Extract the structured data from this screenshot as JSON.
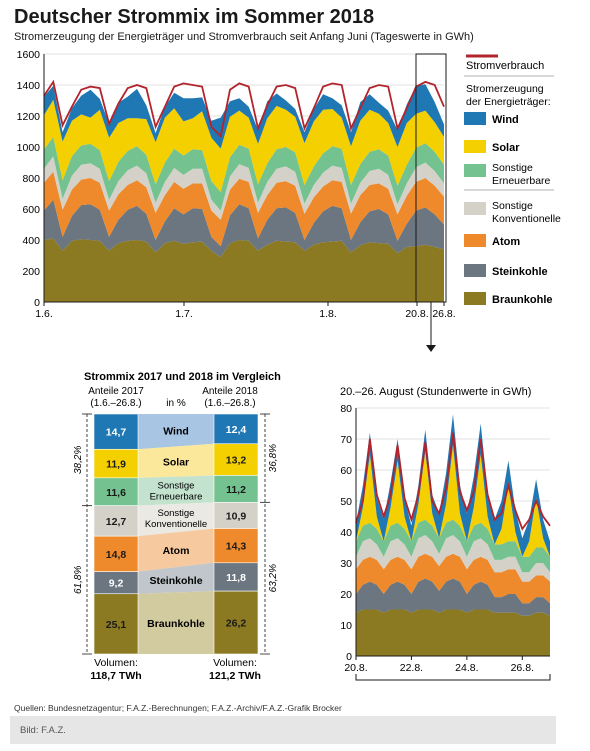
{
  "header": {
    "title": "Deutscher Strommix im Sommer 2018",
    "subtitle": "Stromerzeugung der Energieträger und Stromverbrauch seit Anfang Juni (Tageswerte in GWh)"
  },
  "legend": {
    "consumption": "Stromverbrauch",
    "heading": "Stromerzeugung der Energieträger:",
    "items": [
      {
        "label": "Wind",
        "color": "#1f78b4"
      },
      {
        "label": "Solar",
        "color": "#f5d000"
      },
      {
        "label": "Sonstige Erneuerbare",
        "color": "#73c28f"
      },
      {
        "label": "Sonstige Konventionelle",
        "color": "#d4d1c9"
      },
      {
        "label": "Atom",
        "color": "#ee8a2b"
      },
      {
        "label": "Steinkohle",
        "color": "#6b7680"
      },
      {
        "label": "Braunkohle",
        "color": "#8c7a22"
      }
    ],
    "consumption_color": "#b2242c"
  },
  "chart_data": [
    {
      "type": "area",
      "subtitle": "Stromerzeugung der Energieträger und Stromverbrauch seit Anfang Juni (Tageswerte in GWh)",
      "x_ticks": [
        "1.6.",
        "1.7.",
        "1.8.",
        "20.8.",
        "26.8."
      ],
      "ylim": [
        0,
        1600
      ],
      "y_ticks": [
        0,
        200,
        400,
        600,
        800,
        1000,
        1200,
        1400,
        1600
      ],
      "grid": true,
      "x": [
        "1.6.",
        "3.6.",
        "5.6.",
        "7.6.",
        "9.6.",
        "11.6.",
        "13.6.",
        "15.6.",
        "17.6.",
        "19.6.",
        "21.6.",
        "23.6.",
        "25.6.",
        "27.6.",
        "29.6.",
        "1.7.",
        "3.7.",
        "5.7.",
        "7.7.",
        "9.7.",
        "11.7.",
        "13.7.",
        "15.7.",
        "17.7.",
        "19.7.",
        "21.7.",
        "23.7.",
        "25.7.",
        "27.7.",
        "29.7.",
        "31.7.",
        "2.8.",
        "4.8.",
        "6.8.",
        "8.8.",
        "10.8.",
        "12.8.",
        "14.8.",
        "16.8.",
        "18.8.",
        "20.8.",
        "22.8.",
        "24.8.",
        "26.8."
      ],
      "series": [
        {
          "name": "Braunkohle",
          "values": [
            400,
            410,
            330,
            395,
            405,
            400,
            395,
            330,
            380,
            395,
            400,
            390,
            320,
            380,
            395,
            375,
            385,
            390,
            330,
            290,
            380,
            400,
            395,
            330,
            370,
            395,
            390,
            385,
            330,
            370,
            385,
            390,
            395,
            320,
            365,
            385,
            380,
            375,
            315,
            355,
            360,
            370,
            355,
            340
          ]
        },
        {
          "name": "Steinkohle",
          "values": [
            190,
            250,
            90,
            160,
            220,
            230,
            200,
            90,
            150,
            200,
            220,
            180,
            80,
            140,
            210,
            190,
            220,
            210,
            90,
            70,
            180,
            230,
            210,
            80,
            160,
            210,
            220,
            190,
            70,
            140,
            200,
            230,
            210,
            80,
            150,
            200,
            220,
            190,
            80,
            150,
            230,
            240,
            210,
            160
          ]
        },
        {
          "name": "Atom",
          "values": [
            180,
            180,
            175,
            170,
            165,
            170,
            175,
            170,
            165,
            160,
            165,
            170,
            175,
            170,
            170,
            165,
            160,
            165,
            170,
            170,
            165,
            165,
            170,
            165,
            160,
            165,
            170,
            175,
            170,
            165,
            160,
            165,
            170,
            170,
            175,
            170,
            165,
            165,
            170,
            180,
            185,
            190,
            185,
            180
          ]
        },
        {
          "name": "Sonstige Konventionelle",
          "values": [
            90,
            100,
            70,
            90,
            95,
            95,
            90,
            70,
            85,
            95,
            95,
            90,
            65,
            85,
            90,
            90,
            95,
            95,
            70,
            60,
            85,
            95,
            90,
            65,
            85,
            90,
            95,
            90,
            65,
            80,
            90,
            95,
            90,
            65,
            80,
            90,
            95,
            90,
            65,
            80,
            95,
            100,
            95,
            85
          ]
        },
        {
          "name": "Sonstige Erneuerbare",
          "values": [
            125,
            125,
            120,
            125,
            125,
            125,
            120,
            120,
            125,
            125,
            125,
            120,
            120,
            125,
            125,
            125,
            125,
            120,
            120,
            120,
            125,
            125,
            125,
            120,
            120,
            125,
            125,
            125,
            120,
            120,
            125,
            125,
            125,
            120,
            120,
            125,
            125,
            125,
            120,
            120,
            125,
            125,
            125,
            120
          ]
        },
        {
          "name": "Solar",
          "values": [
            220,
            240,
            250,
            230,
            200,
            170,
            260,
            280,
            250,
            210,
            180,
            230,
            270,
            290,
            260,
            220,
            200,
            250,
            280,
            280,
            260,
            220,
            200,
            260,
            290,
            280,
            240,
            230,
            270,
            290,
            280,
            240,
            200,
            250,
            280,
            270,
            230,
            210,
            250,
            270,
            220,
            210,
            190,
            180
          ]
        },
        {
          "name": "Wind",
          "values": [
            120,
            90,
            60,
            80,
            120,
            180,
            70,
            90,
            130,
            140,
            190,
            90,
            60,
            70,
            100,
            150,
            130,
            90,
            110,
            200,
            100,
            80,
            70,
            90,
            110,
            80,
            60,
            50,
            70,
            80,
            100,
            70,
            80,
            90,
            120,
            100,
            70,
            80,
            110,
            120,
            180,
            170,
            130,
            80
          ]
        }
      ],
      "consumption": [
        1330,
        1420,
        1140,
        1260,
        1370,
        1390,
        1380,
        1150,
        1280,
        1380,
        1400,
        1380,
        1130,
        1260,
        1390,
        1410,
        1400,
        1390,
        1130,
        1070,
        1370,
        1410,
        1390,
        1120,
        1270,
        1390,
        1400,
        1380,
        1120,
        1250,
        1390,
        1410,
        1400,
        1120,
        1250,
        1380,
        1400,
        1390,
        1120,
        1250,
        1390,
        1420,
        1400,
        1260
      ]
    },
    {
      "type": "table",
      "title": "Strommix 2017 und 2018 im Vergleich",
      "col_left": "Anteile 2017",
      "col_left_range": "(1.6.–26.8.)",
      "col_mid": "in %",
      "col_right": "Anteile 2018",
      "col_right_range": "(1.6.–26.8.)",
      "rows": [
        {
          "label": "Wind",
          "v2017": "14,7",
          "v2018": "12,4"
        },
        {
          "label": "Solar",
          "v2017": "11,9",
          "v2018": "13,2"
        },
        {
          "label": "Sonstige Erneuerbare",
          "v2017": "11,6",
          "v2018": "11,2"
        },
        {
          "label": "Sonstige Konventionelle",
          "v2017": "12,7",
          "v2018": "10,9"
        },
        {
          "label": "Atom",
          "v2017": "14,8",
          "v2018": "14,3"
        },
        {
          "label": "Steinkohle",
          "v2017": "9,2",
          "v2018": "11,8"
        },
        {
          "label": "Braunkohle",
          "v2017": "25,1",
          "v2018": "26,2"
        }
      ],
      "group_left": [
        "38,2%",
        "61,8%"
      ],
      "group_right": [
        "36,8%",
        "63,2%"
      ],
      "volume_label": "Volumen:",
      "volume_2017": "118,7 TWh",
      "volume_2018": "121,2 TWh"
    },
    {
      "type": "area",
      "title": "20.–26. August (Stundenwerte in GWh)",
      "x_ticks": [
        "20.8.",
        "22.8.",
        "24.8.",
        "26.8."
      ],
      "ylim": [
        0,
        80
      ],
      "y_ticks": [
        0,
        10,
        20,
        30,
        40,
        50,
        60,
        70,
        80
      ],
      "grid": true,
      "x": [
        "20.8. 0h",
        "20.8. 6h",
        "20.8. 12h",
        "20.8. 18h",
        "21.8. 0h",
        "21.8. 6h",
        "21.8. 12h",
        "21.8. 18h",
        "22.8. 0h",
        "22.8. 6h",
        "22.8. 12h",
        "22.8. 18h",
        "23.8. 0h",
        "23.8. 6h",
        "23.8. 12h",
        "23.8. 18h",
        "24.8. 0h",
        "24.8. 6h",
        "24.8. 12h",
        "24.8. 18h",
        "25.8. 0h",
        "25.8. 6h",
        "25.8. 12h",
        "25.8. 18h",
        "26.8. 0h",
        "26.8. 6h",
        "26.8. 12h",
        "26.8. 18h",
        "27.8. 0h"
      ],
      "series": [
        {
          "name": "Braunkohle",
          "values": [
            14,
            15,
            15,
            15,
            14,
            15,
            15,
            15,
            14,
            15,
            15,
            15,
            14,
            15,
            15,
            15,
            14,
            15,
            15,
            15,
            14,
            14,
            14,
            14,
            13,
            13,
            14,
            14,
            13
          ]
        },
        {
          "name": "Steinkohle",
          "values": [
            6,
            8,
            9,
            8,
            6,
            8,
            9,
            8,
            6,
            9,
            10,
            9,
            7,
            9,
            10,
            9,
            6,
            8,
            9,
            8,
            5,
            5,
            6,
            6,
            4,
            4,
            5,
            5,
            4
          ]
        },
        {
          "name": "Atom",
          "values": [
            8,
            8,
            8,
            8,
            8,
            8,
            8,
            8,
            8,
            8,
            8,
            8,
            8,
            8,
            8,
            8,
            8,
            8,
            8,
            8,
            8,
            8,
            8,
            8,
            7,
            7,
            7,
            7,
            7
          ]
        },
        {
          "name": "Sonstige Konventionelle",
          "values": [
            4,
            6,
            6,
            5,
            4,
            6,
            6,
            5,
            4,
            6,
            6,
            5,
            4,
            6,
            6,
            5,
            4,
            6,
            6,
            5,
            4,
            4,
            4,
            4,
            3,
            3,
            4,
            4,
            3
          ]
        },
        {
          "name": "Sonstige Erneuerbare",
          "values": [
            5,
            5,
            5,
            5,
            5,
            5,
            5,
            5,
            5,
            5,
            5,
            5,
            5,
            5,
            5,
            5,
            5,
            5,
            5,
            5,
            5,
            5,
            5,
            5,
            5,
            5,
            5,
            5,
            5
          ]
        },
        {
          "name": "Solar",
          "values": [
            0,
            6,
            22,
            4,
            0,
            6,
            20,
            4,
            0,
            6,
            22,
            4,
            0,
            6,
            24,
            4,
            0,
            6,
            22,
            4,
            0,
            5,
            18,
            3,
            0,
            5,
            16,
            3,
            0
          ]
        },
        {
          "name": "Wind",
          "values": [
            6,
            7,
            7,
            6,
            7,
            8,
            7,
            6,
            5,
            6,
            7,
            6,
            8,
            10,
            10,
            9,
            9,
            10,
            10,
            8,
            8,
            9,
            8,
            7,
            6,
            7,
            6,
            6,
            5
          ]
        }
      ],
      "consumption": [
        43,
        50,
        70,
        52,
        45,
        52,
        68,
        51,
        44,
        52,
        69,
        50,
        46,
        54,
        72,
        53,
        47,
        53,
        70,
        52,
        44,
        46,
        55,
        47,
        41,
        44,
        50,
        45,
        42
      ]
    }
  ],
  "footer": {
    "sources": "Quellen: Bundesnetzagentur; F.A.Z.-Berechnungen; F.A.Z.-Archiv/F.A.Z.-Grafik Brocker",
    "credit": "Bild: F.A.Z."
  }
}
